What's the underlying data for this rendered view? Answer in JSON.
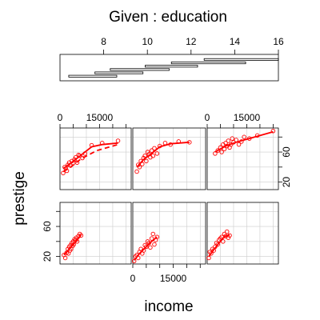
{
  "chart_data": {
    "type": "scatter",
    "plot_kind": "coplot",
    "title": "Given : education",
    "xlabel": "income",
    "ylabel": "prestige",
    "given": {
      "name": "education",
      "axis_range": [
        6,
        16
      ],
      "ticks": [
        8,
        10,
        12,
        14,
        16
      ],
      "tick_labels": [
        "8",
        "10",
        "12",
        "14",
        "16"
      ],
      "intervals": [
        [
          6.4,
          8.6
        ],
        [
          7.6,
          9.8
        ],
        [
          8.3,
          11.0
        ],
        [
          9.9,
          12.3
        ],
        [
          11.1,
          14.5
        ],
        [
          12.6,
          16.0
        ]
      ]
    },
    "x_axis": {
      "range": [
        0,
        27000
      ],
      "ticks": [
        0,
        15000
      ],
      "tick_labels": [
        "0",
        "15000"
      ]
    },
    "y_axis": {
      "range": [
        10,
        92
      ],
      "ticks": [
        20,
        60
      ],
      "tick_labels": [
        "20",
        "60"
      ]
    },
    "grid": true,
    "colors": {
      "points": "#ff0000",
      "smooth": "#ff0000",
      "panel_border": "#000000",
      "grid": "#cccccc"
    },
    "panels": [
      {
        "given_interval": 1,
        "points": [
          [
            1500,
            22
          ],
          [
            2000,
            18
          ],
          [
            2500,
            25
          ],
          [
            3000,
            30
          ],
          [
            3200,
            24
          ],
          [
            3500,
            33
          ],
          [
            3800,
            28
          ],
          [
            4000,
            35
          ],
          [
            4200,
            30
          ],
          [
            4500,
            38
          ],
          [
            4800,
            34
          ],
          [
            5000,
            40
          ],
          [
            5200,
            36
          ],
          [
            5500,
            43
          ],
          [
            6000,
            42
          ],
          [
            6200,
            45
          ],
          [
            6500,
            40
          ],
          [
            7000,
            47
          ],
          [
            7500,
            50
          ],
          [
            8000,
            48
          ]
        ],
        "smooth": [
          [
            1500,
            22
          ],
          [
            3000,
            28
          ],
          [
            5000,
            36
          ],
          [
            6500,
            42
          ],
          [
            8000,
            49
          ]
        ],
        "smooth_dashed": []
      },
      {
        "given_interval": 2,
        "points": [
          [
            500,
            14
          ],
          [
            1000,
            20
          ],
          [
            1500,
            22
          ],
          [
            2000,
            18
          ],
          [
            2500,
            26
          ],
          [
            3000,
            30
          ],
          [
            3500,
            24
          ],
          [
            4000,
            28
          ],
          [
            4500,
            35
          ],
          [
            5000,
            33
          ],
          [
            5500,
            40
          ],
          [
            6000,
            38
          ],
          [
            6500,
            32
          ],
          [
            7000,
            44
          ],
          [
            7500,
            50
          ],
          [
            8000,
            36
          ],
          [
            8500,
            42
          ],
          [
            9000,
            46
          ]
        ],
        "smooth": [
          [
            500,
            15
          ],
          [
            2500,
            24
          ],
          [
            5000,
            33
          ],
          [
            7000,
            40
          ],
          [
            9000,
            46
          ]
        ],
        "smooth_dashed": []
      },
      {
        "given_interval": 3,
        "points": [
          [
            600,
            18
          ],
          [
            1000,
            26
          ],
          [
            1500,
            24
          ],
          [
            2000,
            30
          ],
          [
            2500,
            28
          ],
          [
            3000,
            33
          ],
          [
            3500,
            38
          ],
          [
            4000,
            36
          ],
          [
            4500,
            42
          ],
          [
            5000,
            44
          ],
          [
            5500,
            46
          ],
          [
            6000,
            40
          ],
          [
            6500,
            50
          ],
          [
            7000,
            47
          ],
          [
            7500,
            53
          ],
          [
            8000,
            45
          ],
          [
            8500,
            48
          ]
        ],
        "smooth": [
          [
            600,
            20
          ],
          [
            2500,
            29
          ],
          [
            4500,
            38
          ],
          [
            6500,
            46
          ],
          [
            8500,
            49
          ]
        ],
        "smooth_dashed": []
      },
      {
        "given_interval": 4,
        "points": [
          [
            1200,
            32
          ],
          [
            1800,
            40
          ],
          [
            2200,
            38
          ],
          [
            2600,
            35
          ],
          [
            3000,
            43
          ],
          [
            3500,
            46
          ],
          [
            4000,
            42
          ],
          [
            4500,
            48
          ],
          [
            5000,
            45
          ],
          [
            5500,
            50
          ],
          [
            6000,
            53
          ],
          [
            6500,
            46
          ],
          [
            7000,
            56
          ],
          [
            7500,
            55
          ],
          [
            8500,
            52
          ],
          [
            9500,
            58
          ],
          [
            12000,
            69
          ],
          [
            16000,
            72
          ],
          [
            22000,
            75
          ]
        ],
        "smooth": [
          [
            1200,
            38
          ],
          [
            4000,
            45
          ],
          [
            8000,
            56
          ],
          [
            12000,
            67
          ],
          [
            16000,
            70
          ],
          [
            22000,
            72
          ]
        ],
        "smooth_dashed": [
          [
            1200,
            34
          ],
          [
            4000,
            40
          ],
          [
            8000,
            51
          ],
          [
            14000,
            62
          ],
          [
            22000,
            70
          ]
        ]
      },
      {
        "given_interval": 5,
        "points": [
          [
            1500,
            34
          ],
          [
            2000,
            43
          ],
          [
            2500,
            40
          ],
          [
            3000,
            48
          ],
          [
            3500,
            44
          ],
          [
            4000,
            52
          ],
          [
            4500,
            55
          ],
          [
            5000,
            48
          ],
          [
            5500,
            60
          ],
          [
            6000,
            57
          ],
          [
            6500,
            53
          ],
          [
            7000,
            62
          ],
          [
            7500,
            55
          ],
          [
            8000,
            65
          ],
          [
            9000,
            58
          ],
          [
            10000,
            68
          ],
          [
            12000,
            72
          ],
          [
            14000,
            70
          ],
          [
            17000,
            74
          ],
          [
            21000,
            73
          ]
        ],
        "smooth": [
          [
            1500,
            40
          ],
          [
            4000,
            50
          ],
          [
            7000,
            58
          ],
          [
            10000,
            67
          ],
          [
            14000,
            71
          ],
          [
            21000,
            73
          ]
        ],
        "smooth_dashed": []
      },
      {
        "given_interval": 6,
        "points": [
          [
            3000,
            58
          ],
          [
            4000,
            62
          ],
          [
            5000,
            66
          ],
          [
            5500,
            60
          ],
          [
            6000,
            70
          ],
          [
            6500,
            64
          ],
          [
            7000,
            72
          ],
          [
            7500,
            68
          ],
          [
            8000,
            75
          ],
          [
            8500,
            66
          ],
          [
            9000,
            70
          ],
          [
            9500,
            78
          ],
          [
            10000,
            73
          ],
          [
            11000,
            76
          ],
          [
            12000,
            70
          ],
          [
            13000,
            74
          ],
          [
            14000,
            80
          ],
          [
            16000,
            78
          ],
          [
            19000,
            82
          ],
          [
            25000,
            88
          ]
        ],
        "smooth": [
          [
            3000,
            60
          ],
          [
            7000,
            68
          ],
          [
            11000,
            73
          ],
          [
            16000,
            78
          ],
          [
            25000,
            87
          ]
        ],
        "smooth_dashed": []
      }
    ]
  }
}
